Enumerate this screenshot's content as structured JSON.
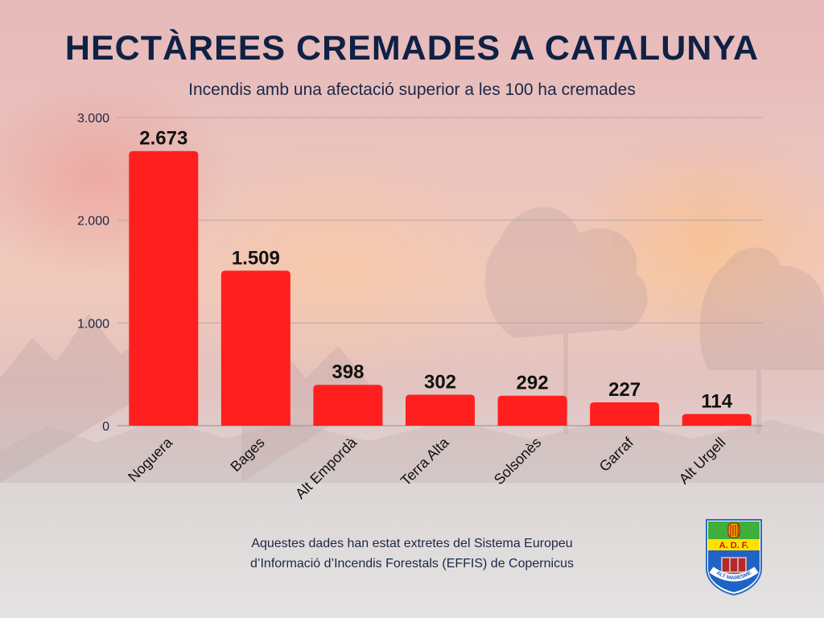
{
  "title": "HECTÀREES CREMADES A CATALUNYA",
  "subtitle": "Incendis amb una afectació superior a les 100 ha cremades",
  "source_line1": "Aquestes dades han estat extretes del Sistema Europeu",
  "source_line2": "d’Informació d’Incendis Forestals (EFFIS) de Copernicus",
  "logo": {
    "text_top": "A. D. F.",
    "text_bottom": "ALT MARESME"
  },
  "colors": {
    "bar": "#ff1f1f",
    "title": "#0f2144",
    "grid": "#b9a6a6"
  },
  "chart_data": {
    "type": "bar",
    "categories": [
      "Noguera",
      "Bages",
      "Alt Empordà",
      "Terra Alta",
      "Solsonès",
      "Garraf",
      "Alt Urgell"
    ],
    "values": [
      2673,
      1509,
      398,
      302,
      292,
      227,
      114
    ],
    "value_labels": [
      "2.673",
      "1.509",
      "398",
      "302",
      "292",
      "227",
      "114"
    ],
    "ylim": [
      0,
      3000
    ],
    "yticks": [
      0,
      1000,
      2000,
      3000
    ],
    "ytick_labels": [
      "0",
      "1.000",
      "2.000",
      "3.000"
    ],
    "grid": true,
    "legend": "none"
  }
}
